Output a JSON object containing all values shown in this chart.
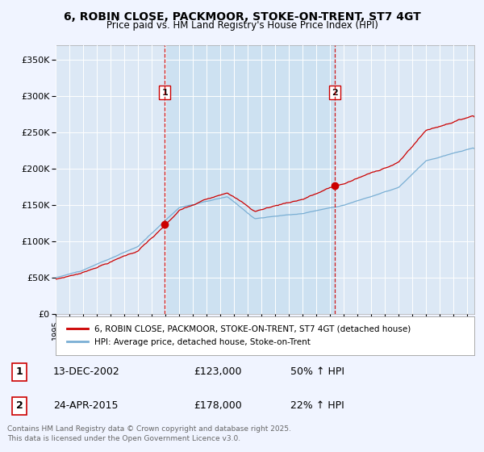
{
  "title": "6, ROBIN CLOSE, PACKMOOR, STOKE-ON-TRENT, ST7 4GT",
  "subtitle": "Price paid vs. HM Land Registry's House Price Index (HPI)",
  "sale1_date": "13-DEC-2002",
  "sale1_price": 123000,
  "sale1_hpi": "50% ↑ HPI",
  "sale2_date": "24-APR-2015",
  "sale2_price": 178000,
  "sale2_hpi": "22% ↑ HPI",
  "legend1": "6, ROBIN CLOSE, PACKMOOR, STOKE-ON-TRENT, ST7 4GT (detached house)",
  "legend2": "HPI: Average price, detached house, Stoke-on-Trent",
  "footer": "Contains HM Land Registry data © Crown copyright and database right 2025.\nThis data is licensed under the Open Government Licence v3.0.",
  "line_color_red": "#cc0000",
  "line_color_blue": "#7aafd4",
  "dashed_line_color": "#cc0000",
  "background_color": "#f0f4ff",
  "plot_bg_color": "#dce8f5",
  "shade_color": "#c8dff0",
  "ytick_labels": [
    "£0",
    "£50K",
    "£100K",
    "£150K",
    "£200K",
    "£250K",
    "£300K",
    "£350K"
  ],
  "ytick_values": [
    0,
    50000,
    100000,
    150000,
    200000,
    250000,
    300000,
    350000
  ],
  "ylim": [
    0,
    370000
  ],
  "xlim_start": 1995.0,
  "xlim_end": 2025.5,
  "sale1_year": 2002.95,
  "sale2_year": 2015.31
}
